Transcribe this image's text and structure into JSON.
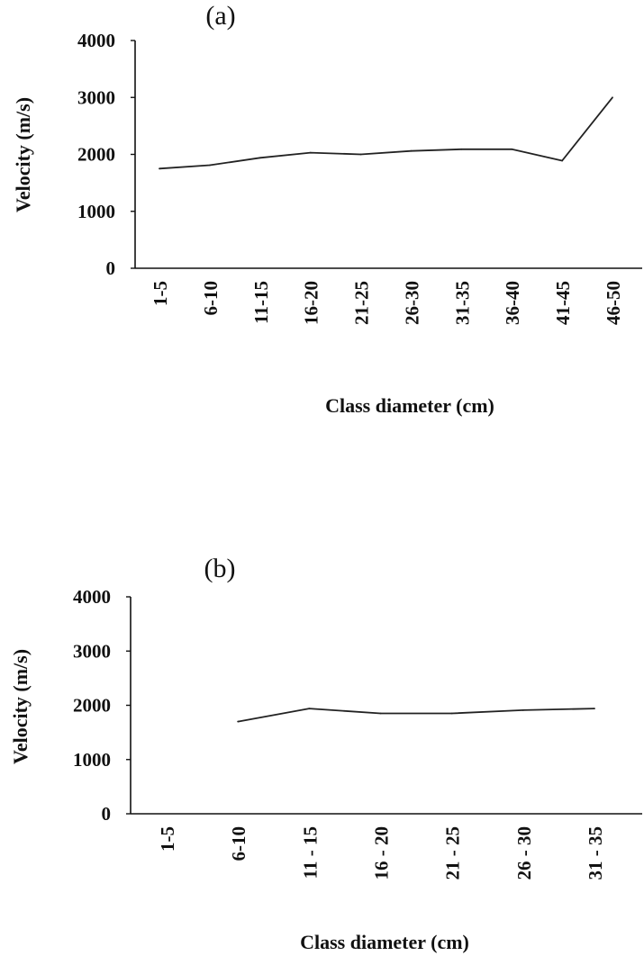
{
  "chart_data": [
    {
      "type": "line",
      "panel_label": "(a)",
      "categories": [
        "1-5",
        "6-10",
        "11-15",
        "16-20",
        "21-25",
        "26-30",
        "31-35",
        "36-40",
        "41-45",
        "46-50"
      ],
      "series": [
        {
          "values": [
            1750,
            1810,
            1940,
            2030,
            2000,
            2060,
            2090,
            2090,
            1890,
            3000
          ]
        }
      ],
      "xlabel": "Class diameter (cm)",
      "ylabel": "Velocity (m/s)",
      "ylim": [
        0,
        4000
      ],
      "yticks": [
        "0",
        "1000",
        "2000",
        "3000",
        "4000"
      ],
      "grid": false,
      "line_color": "#222222"
    },
    {
      "type": "line",
      "panel_label": "(b)",
      "categories": [
        "1-5",
        "6-10",
        "11 - 15",
        "16 - 20",
        "21 - 25",
        "26 - 30",
        "31 - 35"
      ],
      "series": [
        {
          "values": [
            null,
            1700,
            1940,
            1850,
            1850,
            1910,
            1940
          ]
        }
      ],
      "xlabel": "Class diameter (cm)",
      "ylabel": "Velocity (m/s)",
      "ylim": [
        0,
        4000
      ],
      "yticks": [
        "0",
        "1000",
        "2000",
        "3000",
        "4000"
      ],
      "grid": false,
      "line_color": "#222222"
    }
  ]
}
